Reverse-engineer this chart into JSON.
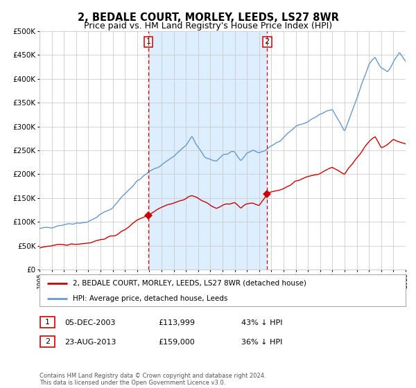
{
  "title": "2, BEDALE COURT, MORLEY, LEEDS, LS27 8WR",
  "subtitle": "Price paid vs. HM Land Registry's House Price Index (HPI)",
  "title_fontsize": 10.5,
  "subtitle_fontsize": 9,
  "ylim": [
    0,
    500000
  ],
  "yticks": [
    0,
    50000,
    100000,
    150000,
    200000,
    250000,
    300000,
    350000,
    400000,
    450000,
    500000
  ],
  "xtick_years": [
    1995,
    1996,
    1997,
    1998,
    1999,
    2000,
    2001,
    2002,
    2003,
    2004,
    2005,
    2006,
    2007,
    2008,
    2009,
    2010,
    2011,
    2012,
    2013,
    2014,
    2015,
    2016,
    2017,
    2018,
    2019,
    2020,
    2021,
    2022,
    2023,
    2024,
    2025
  ],
  "sale1_x": 2003.917,
  "sale1_y": 113999,
  "sale2_x": 2013.646,
  "sale2_y": 159000,
  "property_line_color": "#cc0000",
  "hpi_line_color": "#6699cc",
  "shaded_region_color": "#ddeeff",
  "dashed_line_color": "#cc0000",
  "grid_color": "#cccccc",
  "bg_color": "#ffffff",
  "legend1_label": "2, BEDALE COURT, MORLEY, LEEDS, LS27 8WR (detached house)",
  "legend2_label": "HPI: Average price, detached house, Leeds",
  "annotation1_date": "05-DEC-2003",
  "annotation1_price": "£113,999",
  "annotation1_hpi": "43% ↓ HPI",
  "annotation2_date": "23-AUG-2013",
  "annotation2_price": "£159,000",
  "annotation2_hpi": "36% ↓ HPI",
  "footnote": "Contains HM Land Registry data © Crown copyright and database right 2024.\nThis data is licensed under the Open Government Licence v3.0."
}
